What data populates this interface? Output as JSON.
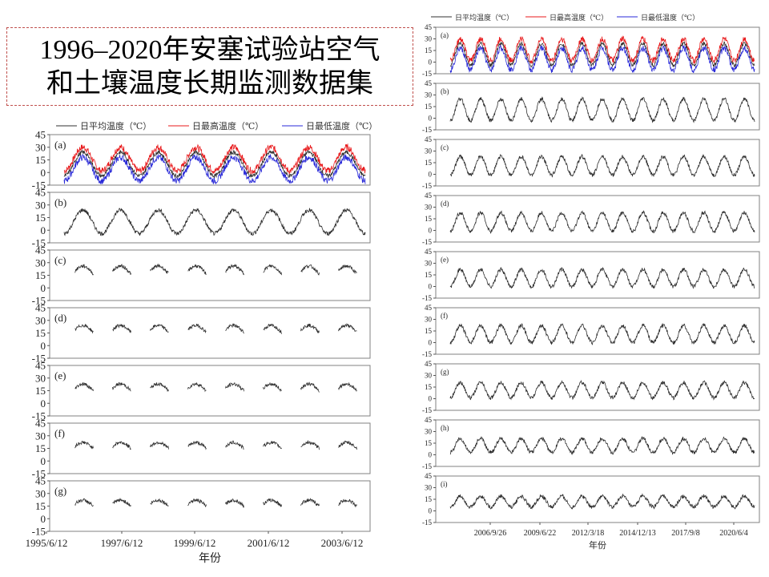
{
  "title": {
    "line1": "1996–2020年安塞试验站空气",
    "line2": "和土壤温度长期监测数据集"
  },
  "legend": {
    "avg": "日平均温度（℃）",
    "max": "日最高温度（℃）",
    "min": "日最低温度（℃）"
  },
  "colors": {
    "avg": "#303030",
    "max": "#e8191b",
    "min": "#2a2ad8",
    "frame": "#808080"
  },
  "chart_data": [
    {
      "type": "line",
      "x_label": "年份",
      "x_ticks": [
        "1995/6/12",
        "1997/6/12",
        "1999/6/12",
        "2001/6/12",
        "2003/6/12"
      ],
      "y_ticks": [
        "45",
        "30",
        "15",
        "0",
        "-15"
      ],
      "ylim": [
        -15,
        45
      ],
      "years": 8,
      "panels": [
        {
          "label": "(a)",
          "series": [
            "日平均温度（℃）",
            "日最高温度（℃）",
            "日最低温度（℃）"
          ],
          "mean": 10,
          "amp": 14,
          "seasonal": false
        },
        {
          "label": "(b)",
          "mean": 10,
          "amp": 14,
          "seasonal": false
        },
        {
          "label": "(c)",
          "mean": 18,
          "amp": 8,
          "seasonal": true
        },
        {
          "label": "(d)",
          "mean": 17,
          "amp": 7,
          "seasonal": true
        },
        {
          "label": "(e)",
          "mean": 16,
          "amp": 7,
          "seasonal": true
        },
        {
          "label": "(f)",
          "mean": 16,
          "amp": 6,
          "seasonal": true
        },
        {
          "label": "(g)",
          "mean": 16,
          "amp": 6,
          "seasonal": true
        }
      ]
    },
    {
      "type": "line",
      "x_label": "年份",
      "x_ticks": [
        "2006/9/26",
        "2009/6/22",
        "2012/3/18",
        "2014/12/13",
        "2017/9/8",
        "2020/6/4"
      ],
      "y_ticks": [
        "45",
        "30",
        "15",
        "0",
        "-15"
      ],
      "ylim": [
        -15,
        45
      ],
      "years": 15,
      "panels": [
        {
          "label": "(a)",
          "series": [
            "日平均温度（℃）",
            "日最高温度（℃）",
            "日最低温度（℃）"
          ],
          "mean": 10,
          "amp": 14
        },
        {
          "label": "(b)",
          "mean": 11,
          "amp": 14
        },
        {
          "label": "(c)",
          "mean": 11,
          "amp": 12
        },
        {
          "label": "(d)",
          "mean": 11,
          "amp": 12
        },
        {
          "label": "(e)",
          "mean": 11,
          "amp": 11
        },
        {
          "label": "(f)",
          "mean": 11,
          "amp": 11
        },
        {
          "label": "(g)",
          "mean": 11,
          "amp": 10
        },
        {
          "label": "(h)",
          "mean": 12,
          "amp": 9
        },
        {
          "label": "(i)",
          "mean": 12,
          "amp": 7
        }
      ]
    }
  ]
}
